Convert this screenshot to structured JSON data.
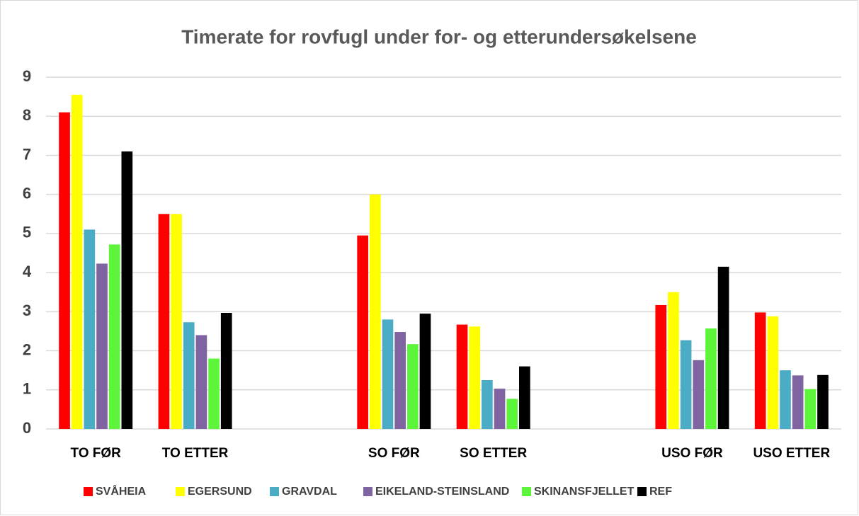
{
  "chart_data": {
    "type": "bar",
    "title": "Timerate for rovfugl under for- og etterundersøkelsene",
    "categories": [
      "TO FØR",
      "TO ETTER",
      null,
      "SO FØR",
      "SO ETTER",
      null,
      "USO FØR",
      "USO ETTER"
    ],
    "series": [
      {
        "name": "SVÅHEIA",
        "color": "#ff0000",
        "values": [
          8.1,
          5.5,
          null,
          4.95,
          2.67,
          null,
          3.17,
          2.98
        ]
      },
      {
        "name": "EGERSUND",
        "color": "#ffff00",
        "values": [
          8.55,
          5.5,
          null,
          6.0,
          2.62,
          null,
          3.5,
          2.88
        ]
      },
      {
        "name": "GRAVDAL",
        "color": "#4bacc6",
        "values": [
          5.1,
          2.73,
          null,
          2.8,
          1.25,
          null,
          2.27,
          1.5
        ]
      },
      {
        "name": "EIKELAND-STEINSLAND",
        "color": "#8064a2",
        "values": [
          4.23,
          2.4,
          null,
          2.48,
          1.03,
          null,
          1.76,
          1.37
        ]
      },
      {
        "name": "SKINANSFJELLET",
        "color": "#5cf53a",
        "values": [
          4.72,
          1.8,
          null,
          2.17,
          0.77,
          null,
          2.57,
          1.02
        ]
      },
      {
        "name": "REF",
        "color": "#000000",
        "values": [
          7.1,
          2.97,
          null,
          2.95,
          1.6,
          null,
          4.15,
          1.38
        ]
      }
    ],
    "ylim": [
      0,
      9
    ],
    "yticks": [
      0,
      1,
      2,
      3,
      4,
      5,
      6,
      7,
      8,
      9
    ],
    "grid": true,
    "legend": "bottom"
  }
}
